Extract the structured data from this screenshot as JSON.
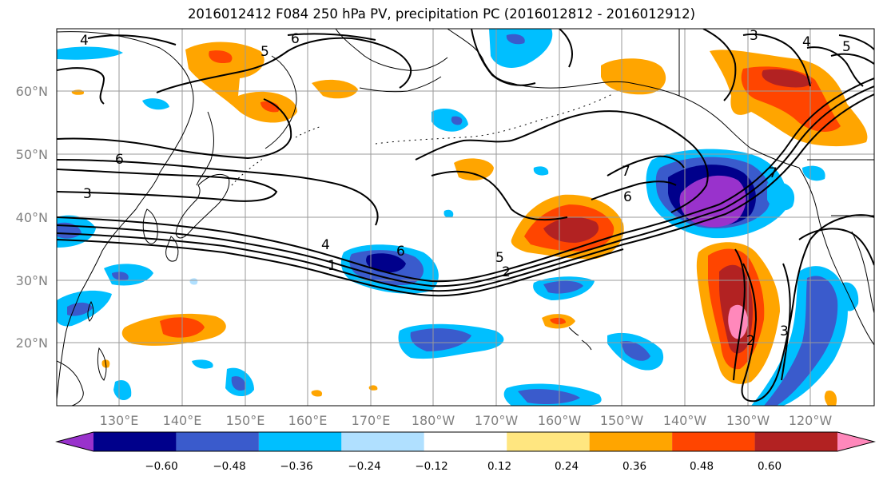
{
  "title": "2016012412 F084 250 hPa PV, precipitation PC (2016012812 - 2016012912)",
  "lat_labels": [
    "60°N",
    "50°N",
    "40°N",
    "30°N",
    "20°N"
  ],
  "lon_labels": [
    "130°E",
    "140°E",
    "150°E",
    "160°E",
    "170°E",
    "180°W",
    "170°W",
    "160°W",
    "150°W",
    "140°W",
    "130°W",
    "120°W"
  ],
  "colorbar": {
    "ticks": [
      "−0.60",
      "−0.48",
      "−0.36",
      "−0.24",
      "−0.12",
      "0.12",
      "0.24",
      "0.36",
      "0.48",
      "0.60"
    ],
    "colors": [
      "#9932cc",
      "#00008b",
      "#3a5bcc",
      "#00bfff",
      "#b0e0ff",
      "#ffffff",
      "#ffe680",
      "#ffa500",
      "#ff4500",
      "#b22222",
      "#ff88bb"
    ]
  },
  "contour_labels": [
    "4",
    "6",
    "5",
    "6",
    "3",
    "3",
    "4",
    "5",
    "1",
    "6",
    "4",
    "5",
    "2",
    "7",
    "6",
    "7",
    "2",
    "3"
  ]
}
